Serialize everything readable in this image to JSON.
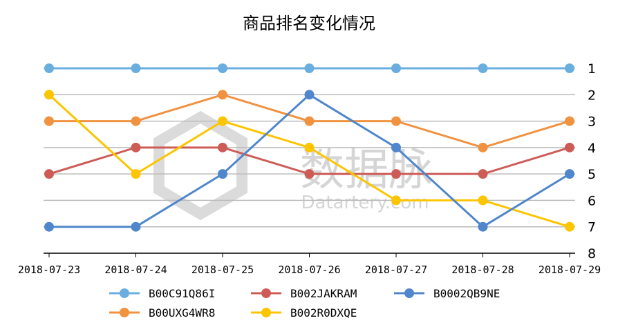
{
  "chart_data": {
    "type": "line",
    "title": "商品排名变化情况",
    "x": [
      "2018-07-23",
      "2018-07-24",
      "2018-07-25",
      "2018-07-26",
      "2018-07-27",
      "2018-07-28",
      "2018-07-29"
    ],
    "ylim": [
      1,
      8
    ],
    "y_inverted": true,
    "y_ticks": [
      "1",
      "2",
      "3",
      "4",
      "5",
      "6",
      "7",
      "8"
    ],
    "y_axis_position": "right",
    "grid": true,
    "legend_position": "bottom",
    "series": [
      {
        "name": "B00C91Q86I",
        "color": "#6aaee0",
        "values": [
          1,
          1,
          1,
          1,
          1,
          1,
          1
        ]
      },
      {
        "name": "B00UXG4WR8",
        "color": "#f0923f",
        "values": [
          3,
          3,
          2,
          3,
          3,
          4,
          3
        ]
      },
      {
        "name": "B002JAKRAM",
        "color": "#cd5c57",
        "values": [
          5,
          4,
          4,
          5,
          5,
          5,
          4
        ]
      },
      {
        "name": "B002R0DXQE",
        "color": "#fcc500",
        "values": [
          2,
          5,
          3,
          4,
          6,
          6,
          7
        ]
      },
      {
        "name": "B0002QB9NE",
        "color": "#4f86cc",
        "values": [
          7,
          7,
          5,
          2,
          4,
          7,
          5
        ]
      }
    ]
  },
  "watermark": {
    "cn": "数据脉",
    "en": "Datartery.com"
  }
}
